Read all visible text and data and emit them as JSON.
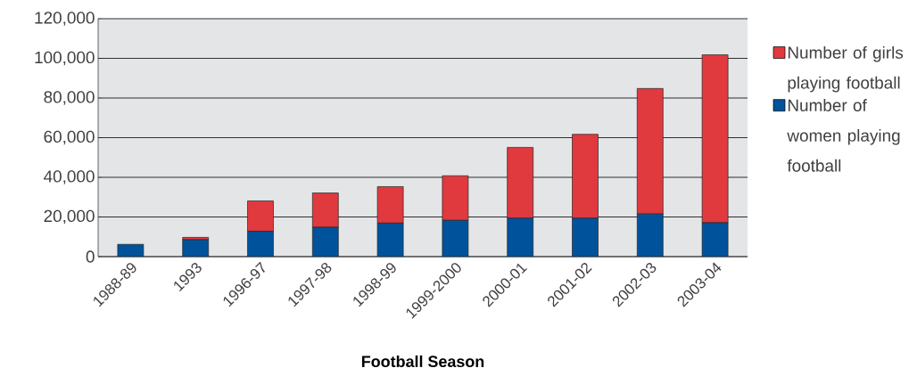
{
  "chart_data": {
    "type": "bar",
    "stacked": true,
    "xlabel": "Football Season",
    "categories": [
      "1988-89",
      "1993",
      "1996-97",
      "1997-98",
      "1998-99",
      "1999-2000",
      "2000-01",
      "2001-02",
      "2002-03",
      "2003-04"
    ],
    "series": [
      {
        "name": "Number of women playing football",
        "color": "#00529b",
        "values": [
          6200,
          8500,
          12800,
          14800,
          16900,
          18300,
          19400,
          19400,
          21500,
          17100
        ]
      },
      {
        "name": "Number of girls playing football",
        "color": "#e0393e",
        "values": [
          0,
          1200,
          15300,
          17300,
          18400,
          22500,
          35700,
          42300,
          63300,
          84700
        ]
      }
    ],
    "ylim": [
      0,
      120000
    ],
    "yticks": [
      {
        "value": 0,
        "label": "0"
      },
      {
        "value": 20000,
        "label": "20,000"
      },
      {
        "value": 40000,
        "label": "40,000"
      },
      {
        "value": 60000,
        "label": "60,000"
      },
      {
        "value": 80000,
        "label": "80,000"
      },
      {
        "value": 100000,
        "label": "100,000"
      },
      {
        "value": 120000,
        "label": "120,000"
      }
    ],
    "grid": "y",
    "legend": "right"
  }
}
